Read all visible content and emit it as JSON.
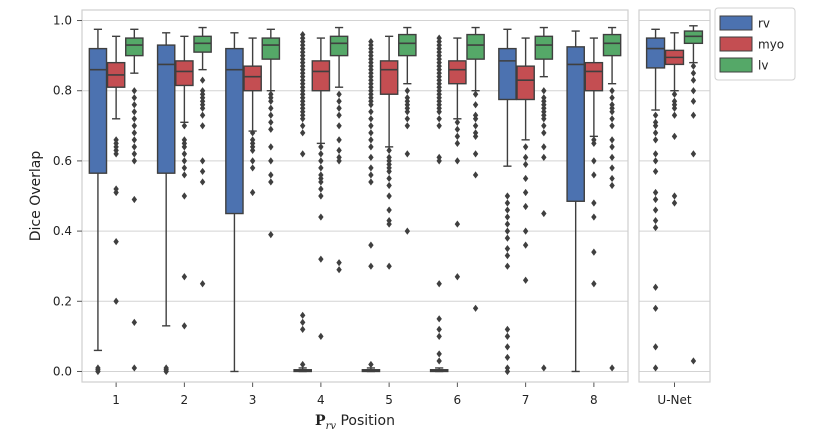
{
  "chart_data": {
    "type": "box",
    "xlabel_main": "P",
    "xlabel_sub": "rv",
    "xlabel_rest": " Position",
    "ylabel": "Dice Overlap",
    "ylim": [
      -0.03,
      1.03
    ],
    "yticks": [
      0.0,
      0.2,
      0.4,
      0.6,
      0.8,
      1.0
    ],
    "ytick_labels": [
      "0.0",
      "0.2",
      "0.4",
      "0.6",
      "0.8",
      "1.0"
    ],
    "grid": "horizontal",
    "legend_position": "top-right",
    "series": [
      {
        "name": "rv",
        "color": "#4C72B0"
      },
      {
        "name": "myo",
        "color": "#C44E52"
      },
      {
        "name": "lv",
        "color": "#55A868"
      }
    ],
    "panels": [
      {
        "categories": [
          "1",
          "2",
          "3",
          "4",
          "5",
          "6",
          "7",
          "8"
        ],
        "boxes": [
          [
            {
              "q1": 0.565,
              "median": 0.86,
              "q3": 0.92,
              "whislo": 0.06,
              "whishi": 0.975,
              "fliers": [
                0.0,
                0.005,
                0.01
              ]
            },
            {
              "q1": 0.81,
              "median": 0.845,
              "q3": 0.88,
              "whislo": 0.72,
              "whishi": 0.955,
              "fliers": [
                0.66,
                0.65,
                0.64,
                0.63,
                0.62,
                0.52,
                0.51,
                0.37,
                0.2
              ]
            },
            {
              "q1": 0.9,
              "median": 0.93,
              "q3": 0.95,
              "whislo": 0.85,
              "whishi": 0.975,
              "fliers": [
                0.8,
                0.78,
                0.76,
                0.74,
                0.72,
                0.7,
                0.68,
                0.66,
                0.64,
                0.62,
                0.6,
                0.49,
                0.14,
                0.01
              ]
            }
          ],
          [
            {
              "q1": 0.565,
              "median": 0.875,
              "q3": 0.93,
              "whislo": 0.13,
              "whishi": 0.965,
              "fliers": [
                0.0,
                0.005,
                0.01
              ]
            },
            {
              "q1": 0.815,
              "median": 0.855,
              "q3": 0.885,
              "whislo": 0.71,
              "whishi": 0.955,
              "fliers": [
                0.7,
                0.66,
                0.65,
                0.64,
                0.62,
                0.6,
                0.58,
                0.56,
                0.5,
                0.27,
                0.13
              ]
            },
            {
              "q1": 0.91,
              "median": 0.935,
              "q3": 0.955,
              "whislo": 0.86,
              "whishi": 0.98,
              "fliers": [
                0.83,
                0.8,
                0.79,
                0.78,
                0.77,
                0.76,
                0.75,
                0.73,
                0.7,
                0.6,
                0.57,
                0.54,
                0.25
              ]
            }
          ],
          [
            {
              "q1": 0.45,
              "median": 0.86,
              "q3": 0.92,
              "whislo": 0.0,
              "whishi": 0.965,
              "fliers": []
            },
            {
              "q1": 0.8,
              "median": 0.84,
              "q3": 0.87,
              "whislo": 0.685,
              "whishi": 0.95,
              "fliers": [
                0.68,
                0.66,
                0.65,
                0.64,
                0.63,
                0.6,
                0.58,
                0.51
              ]
            },
            {
              "q1": 0.89,
              "median": 0.93,
              "q3": 0.95,
              "whislo": 0.8,
              "whishi": 0.975,
              "fliers": [
                0.79,
                0.78,
                0.77,
                0.75,
                0.73,
                0.71,
                0.69,
                0.64,
                0.6,
                0.56,
                0.54,
                0.39
              ]
            }
          ],
          [
            {
              "q1": 0.0,
              "median": 0.002,
              "q3": 0.005,
              "whislo": 0.0,
              "whishi": 0.01,
              "fliers": [
                0.96,
                0.95,
                0.94,
                0.93,
                0.92,
                0.91,
                0.9,
                0.89,
                0.88,
                0.87,
                0.86,
                0.85,
                0.84,
                0.83,
                0.82,
                0.81,
                0.8,
                0.79,
                0.78,
                0.77,
                0.76,
                0.75,
                0.74,
                0.73,
                0.72,
                0.7,
                0.68,
                0.62,
                0.16,
                0.14,
                0.12,
                0.02
              ]
            },
            {
              "q1": 0.8,
              "median": 0.855,
              "q3": 0.885,
              "whislo": 0.65,
              "whishi": 0.95,
              "fliers": [
                0.64,
                0.62,
                0.6,
                0.58,
                0.56,
                0.55,
                0.54,
                0.52,
                0.5,
                0.44,
                0.32,
                0.1
              ]
            },
            {
              "q1": 0.9,
              "median": 0.935,
              "q3": 0.955,
              "whislo": 0.81,
              "whishi": 0.98,
              "fliers": [
                0.79,
                0.77,
                0.75,
                0.73,
                0.7,
                0.66,
                0.63,
                0.61,
                0.6,
                0.31,
                0.29
              ]
            }
          ],
          [
            {
              "q1": 0.0,
              "median": 0.002,
              "q3": 0.005,
              "whislo": 0.0,
              "whishi": 0.01,
              "fliers": [
                0.94,
                0.93,
                0.92,
                0.91,
                0.9,
                0.89,
                0.88,
                0.87,
                0.86,
                0.85,
                0.84,
                0.83,
                0.82,
                0.81,
                0.8,
                0.79,
                0.78,
                0.77,
                0.76,
                0.74,
                0.72,
                0.7,
                0.68,
                0.66,
                0.64,
                0.61,
                0.58,
                0.56,
                0.54,
                0.36,
                0.3,
                0.02
              ]
            },
            {
              "q1": 0.79,
              "median": 0.86,
              "q3": 0.885,
              "whislo": 0.64,
              "whishi": 0.955,
              "fliers": [
                0.63,
                0.61,
                0.6,
                0.59,
                0.58,
                0.57,
                0.55,
                0.53,
                0.5,
                0.46,
                0.43,
                0.42,
                0.3
              ]
            },
            {
              "q1": 0.9,
              "median": 0.935,
              "q3": 0.96,
              "whislo": 0.82,
              "whishi": 0.98,
              "fliers": [
                0.8,
                0.78,
                0.77,
                0.76,
                0.75,
                0.74,
                0.72,
                0.7,
                0.62,
                0.4
              ]
            }
          ],
          [
            {
              "q1": 0.0,
              "median": 0.002,
              "q3": 0.005,
              "whislo": 0.0,
              "whishi": 0.01,
              "fliers": [
                0.95,
                0.94,
                0.93,
                0.92,
                0.91,
                0.9,
                0.89,
                0.88,
                0.87,
                0.86,
                0.85,
                0.84,
                0.83,
                0.82,
                0.81,
                0.8,
                0.79,
                0.78,
                0.77,
                0.76,
                0.75,
                0.74,
                0.72,
                0.7,
                0.61,
                0.6,
                0.25,
                0.15,
                0.12,
                0.1,
                0.05,
                0.03
              ]
            },
            {
              "q1": 0.82,
              "median": 0.86,
              "q3": 0.885,
              "whislo": 0.72,
              "whishi": 0.95,
              "fliers": [
                0.71,
                0.69,
                0.67,
                0.65,
                0.6,
                0.42,
                0.27
              ]
            },
            {
              "q1": 0.89,
              "median": 0.93,
              "q3": 0.96,
              "whislo": 0.8,
              "whishi": 0.98,
              "fliers": [
                0.79,
                0.76,
                0.73,
                0.72,
                0.7,
                0.68,
                0.67,
                0.62,
                0.56,
                0.18
              ]
            }
          ],
          [
            {
              "q1": 0.775,
              "median": 0.885,
              "q3": 0.92,
              "whislo": 0.585,
              "whishi": 0.975,
              "fliers": [
                0.5,
                0.48,
                0.46,
                0.44,
                0.42,
                0.4,
                0.38,
                0.35,
                0.33,
                0.3,
                0.12,
                0.1,
                0.07,
                0.04,
                0.01,
                0.0
              ]
            },
            {
              "q1": 0.775,
              "median": 0.83,
              "q3": 0.87,
              "whislo": 0.66,
              "whishi": 0.95,
              "fliers": [
                0.64,
                0.61,
                0.59,
                0.55,
                0.51,
                0.47,
                0.4,
                0.36,
                0.26
              ]
            },
            {
              "q1": 0.89,
              "median": 0.93,
              "q3": 0.955,
              "whislo": 0.84,
              "whishi": 0.98,
              "fliers": [
                0.8,
                0.78,
                0.77,
                0.76,
                0.75,
                0.74,
                0.73,
                0.72,
                0.7,
                0.68,
                0.64,
                0.61,
                0.45,
                0.01
              ]
            }
          ],
          [
            {
              "q1": 0.485,
              "median": 0.875,
              "q3": 0.925,
              "whislo": 0.0,
              "whishi": 0.97,
              "fliers": []
            },
            {
              "q1": 0.8,
              "median": 0.855,
              "q3": 0.88,
              "whislo": 0.67,
              "whishi": 0.95,
              "fliers": [
                0.66,
                0.65,
                0.6,
                0.56,
                0.48,
                0.44,
                0.34,
                0.25
              ]
            },
            {
              "q1": 0.9,
              "median": 0.935,
              "q3": 0.96,
              "whislo": 0.82,
              "whishi": 0.98,
              "fliers": [
                0.8,
                0.78,
                0.76,
                0.75,
                0.74,
                0.72,
                0.7,
                0.66,
                0.64,
                0.61,
                0.58,
                0.55,
                0.53,
                0.01
              ]
            }
          ]
        ]
      },
      {
        "categories": [
          "U-Net"
        ],
        "boxes": [
          [
            {
              "q1": 0.865,
              "median": 0.92,
              "q3": 0.95,
              "whislo": 0.745,
              "whishi": 0.975,
              "fliers": [
                0.73,
                0.71,
                0.7,
                0.68,
                0.66,
                0.62,
                0.6,
                0.57,
                0.51,
                0.49,
                0.46,
                0.43,
                0.41,
                0.24,
                0.18,
                0.07,
                0.01
              ]
            },
            {
              "q1": 0.875,
              "median": 0.895,
              "q3": 0.915,
              "whislo": 0.8,
              "whishi": 0.965,
              "fliers": [
                0.79,
                0.77,
                0.76,
                0.75,
                0.73,
                0.67,
                0.5,
                0.48
              ]
            },
            {
              "q1": 0.935,
              "median": 0.955,
              "q3": 0.97,
              "whislo": 0.88,
              "whishi": 0.985,
              "fliers": [
                0.87,
                0.85,
                0.83,
                0.8,
                0.77,
                0.73,
                0.62,
                0.03
              ]
            }
          ]
        ]
      }
    ]
  }
}
